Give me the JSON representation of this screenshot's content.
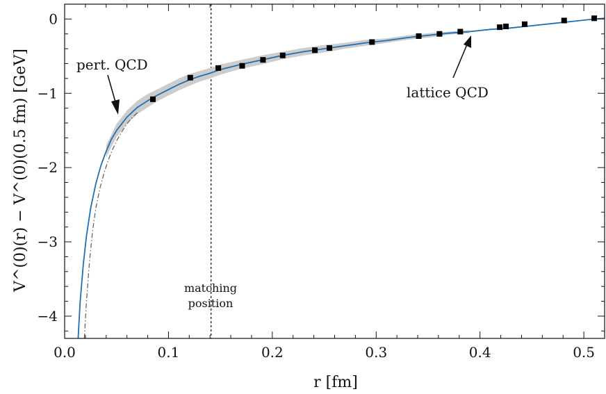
{
  "chart_data": {
    "type": "line",
    "xlabel": "r [fm]",
    "ylabel": "V^(0)(r) − V^(0)(0.5 fm) [GeV]",
    "xlim": [
      0.0,
      0.52
    ],
    "ylim": [
      -4.3,
      0.2
    ],
    "xticks": [
      0.0,
      0.1,
      0.2,
      0.3,
      0.4,
      0.5
    ],
    "xtick_labels": [
      "0.0",
      "0.1",
      "0.2",
      "0.3",
      "0.4",
      "0.5"
    ],
    "yticks": [
      0,
      -1,
      -2,
      -3,
      -4
    ],
    "ytick_labels": [
      "0",
      "−1",
      "−2",
      "−3",
      "−4"
    ],
    "grid": false,
    "matching_position": 0.141,
    "series": [
      {
        "kind": "band",
        "color": "#cccccc",
        "x": [
          0.04,
          0.05,
          0.06,
          0.07,
          0.08,
          0.09,
          0.1,
          0.11,
          0.12,
          0.13,
          0.14,
          0.15,
          0.17,
          0.19,
          0.21,
          0.23,
          0.25,
          0.27,
          0.29,
          0.31,
          0.33,
          0.35,
          0.37,
          0.39
        ],
        "center": [
          -1.78,
          -1.5,
          -1.32,
          -1.19,
          -1.1,
          -1.02,
          -0.95,
          -0.88,
          -0.82,
          -0.77,
          -0.73,
          -0.68,
          -0.61,
          -0.55,
          -0.49,
          -0.44,
          -0.4,
          -0.36,
          -0.32,
          -0.29,
          -0.25,
          -0.22,
          -0.19,
          -0.17
        ],
        "halfwidth": [
          0.08,
          0.09,
          0.09,
          0.09,
          0.09,
          0.08,
          0.08,
          0.08,
          0.08,
          0.07,
          0.07,
          0.07,
          0.06,
          0.06,
          0.05,
          0.05,
          0.05,
          0.04,
          0.04,
          0.03,
          0.03,
          0.03,
          0.02,
          0.02
        ]
      },
      {
        "kind": "line",
        "color": "#1f6fb5",
        "style": "solid",
        "x": [
          0.013,
          0.015,
          0.018,
          0.021,
          0.025,
          0.03,
          0.035,
          0.04,
          0.045,
          0.05,
          0.06,
          0.07,
          0.08,
          0.09,
          0.1,
          0.11,
          0.12,
          0.13,
          0.14,
          0.15,
          0.17,
          0.19,
          0.21,
          0.23,
          0.25,
          0.27,
          0.29,
          0.31,
          0.33,
          0.35,
          0.37,
          0.39,
          0.41,
          0.43,
          0.45,
          0.47,
          0.49,
          0.51,
          0.52
        ],
        "y": [
          -4.3,
          -3.8,
          -3.3,
          -2.92,
          -2.55,
          -2.22,
          -1.97,
          -1.78,
          -1.62,
          -1.5,
          -1.32,
          -1.19,
          -1.1,
          -1.02,
          -0.95,
          -0.88,
          -0.82,
          -0.77,
          -0.73,
          -0.68,
          -0.61,
          -0.55,
          -0.49,
          -0.44,
          -0.4,
          -0.36,
          -0.32,
          -0.29,
          -0.25,
          -0.22,
          -0.19,
          -0.17,
          -0.14,
          -0.12,
          -0.09,
          -0.06,
          -0.03,
          0.0,
          0.01
        ]
      },
      {
        "kind": "line",
        "color": "#666666",
        "style": "dashdot",
        "x": [
          0.019,
          0.021,
          0.024,
          0.027,
          0.03,
          0.034,
          0.038,
          0.042,
          0.046,
          0.05,
          0.055,
          0.06,
          0.065,
          0.07
        ],
        "y": [
          -4.3,
          -3.8,
          -3.25,
          -2.85,
          -2.55,
          -2.28,
          -2.07,
          -1.9,
          -1.76,
          -1.64,
          -1.52,
          -1.41,
          -1.33,
          -1.26
        ]
      },
      {
        "kind": "points",
        "color": "#000000",
        "x": [
          0.085,
          0.121,
          0.148,
          0.171,
          0.191,
          0.21,
          0.241,
          0.255,
          0.296,
          0.341,
          0.361,
          0.381,
          0.419,
          0.425,
          0.443,
          0.481,
          0.51
        ],
        "y": [
          -1.08,
          -0.79,
          -0.66,
          -0.63,
          -0.55,
          -0.49,
          -0.42,
          -0.39,
          -0.31,
          -0.23,
          -0.2,
          -0.17,
          -0.11,
          -0.1,
          -0.07,
          -0.02,
          0.01
        ]
      }
    ],
    "annotations": {
      "pert": "pert. QCD",
      "lattice": "lattice QCD",
      "matching_line1": "matching",
      "matching_line2": "position"
    }
  }
}
